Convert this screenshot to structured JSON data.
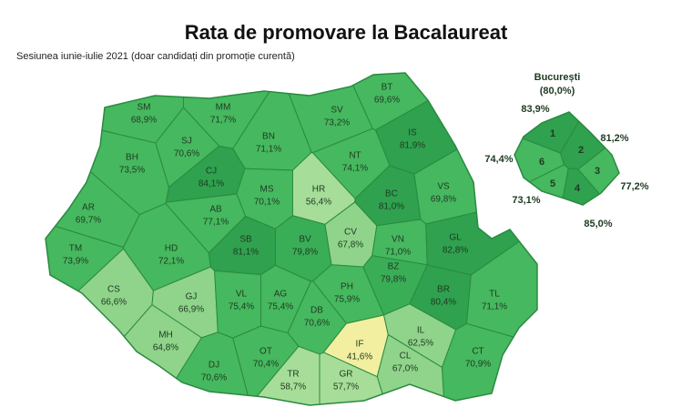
{
  "title": "Rata de promovare la Bacalaureat",
  "subtitle": "Sesiunea iunie-iulie 2021 (doar candidați din promoție curentă)",
  "counties": [
    {
      "code": "SM",
      "value": 68.9,
      "label": "68,9%",
      "color": "#46b85f"
    },
    {
      "code": "MM",
      "value": 71.7,
      "label": "71,7%",
      "color": "#46b85f"
    },
    {
      "code": "BT",
      "value": 69.6,
      "label": "69,6%",
      "color": "#46b85f"
    },
    {
      "code": "SV",
      "value": 73.2,
      "label": "73,2%",
      "color": "#46b85f"
    },
    {
      "code": "SJ",
      "value": 70.6,
      "label": "70,6%",
      "color": "#46b85f"
    },
    {
      "code": "BN",
      "value": 71.1,
      "label": "71,1%",
      "color": "#46b85f"
    },
    {
      "code": "IS",
      "value": 81.9,
      "label": "81,9%",
      "color": "#2fa14f"
    },
    {
      "code": "BH",
      "value": 73.5,
      "label": "73,5%",
      "color": "#46b85f"
    },
    {
      "code": "CJ",
      "value": 84.1,
      "label": "84,1%",
      "color": "#2fa14f"
    },
    {
      "code": "NT",
      "value": 74.1,
      "label": "74,1%",
      "color": "#46b85f"
    },
    {
      "code": "MS",
      "value": 70.1,
      "label": "70,1%",
      "color": "#46b85f"
    },
    {
      "code": "HR",
      "value": 56.4,
      "label": "56,4%",
      "color": "#a6dd98"
    },
    {
      "code": "BC",
      "value": 81.0,
      "label": "81,0%",
      "color": "#2fa14f"
    },
    {
      "code": "VS",
      "value": 69.8,
      "label": "69,8%",
      "color": "#46b85f"
    },
    {
      "code": "AR",
      "value": 69.7,
      "label": "69,7%",
      "color": "#46b85f"
    },
    {
      "code": "AB",
      "value": 77.1,
      "label": "77,1%",
      "color": "#46b85f"
    },
    {
      "code": "CV",
      "value": 67.8,
      "label": "67,8%",
      "color": "#8fd48a"
    },
    {
      "code": "SB",
      "value": 81.1,
      "label": "81,1%",
      "color": "#2fa14f"
    },
    {
      "code": "BV",
      "value": 79.8,
      "label": "79,8%",
      "color": "#3aad57"
    },
    {
      "code": "VN",
      "value": 71.0,
      "label": "71,0%",
      "color": "#46b85f"
    },
    {
      "code": "GL",
      "value": 82.8,
      "label": "82,8%",
      "color": "#2fa14f"
    },
    {
      "code": "TM",
      "value": 73.9,
      "label": "73,9%",
      "color": "#46b85f"
    },
    {
      "code": "HD",
      "value": 72.1,
      "label": "72,1%",
      "color": "#46b85f"
    },
    {
      "code": "CS",
      "value": 66.6,
      "label": "66,6%",
      "color": "#8fd48a"
    },
    {
      "code": "GJ",
      "value": 66.9,
      "label": "66,9%",
      "color": "#8fd48a"
    },
    {
      "code": "VL",
      "value": 75.4,
      "label": "75,4%",
      "color": "#46b85f"
    },
    {
      "code": "AG",
      "value": 75.4,
      "label": "75,4%",
      "color": "#46b85f"
    },
    {
      "code": "PH",
      "value": 75.9,
      "label": "75,9%",
      "color": "#46b85f"
    },
    {
      "code": "BZ",
      "value": 79.8,
      "label": "79,8%",
      "color": "#3aad57"
    },
    {
      "code": "BR",
      "value": 80.4,
      "label": "80,4%",
      "color": "#2fa14f"
    },
    {
      "code": "TL",
      "value": 71.1,
      "label": "71,1%",
      "color": "#46b85f"
    },
    {
      "code": "DB",
      "value": 70.6,
      "label": "70,6%",
      "color": "#46b85f"
    },
    {
      "code": "MH",
      "value": 64.8,
      "label": "64,8%",
      "color": "#8fd48a"
    },
    {
      "code": "IL",
      "value": 62.5,
      "label": "62,5%",
      "color": "#8fd48a"
    },
    {
      "code": "IF",
      "value": 41.6,
      "label": "41,6%",
      "color": "#f3efa0"
    },
    {
      "code": "CL",
      "value": 67.0,
      "label": "67,0%",
      "color": "#8fd48a"
    },
    {
      "code": "CT",
      "value": 70.9,
      "label": "70,9%",
      "color": "#46b85f"
    },
    {
      "code": "DJ",
      "value": 70.6,
      "label": "70,6%",
      "color": "#46b85f"
    },
    {
      "code": "OT",
      "value": 70.4,
      "label": "70,4%",
      "color": "#46b85f"
    },
    {
      "code": "TR",
      "value": 58.7,
      "label": "58,7%",
      "color": "#a6dd98"
    },
    {
      "code": "GR",
      "value": 57.7,
      "label": "57,7%",
      "color": "#a6dd98"
    }
  ],
  "bucharest": {
    "name": "București",
    "value": 80.0,
    "label": "(80,0%)",
    "sectors": [
      {
        "number": "1",
        "value": 83.9,
        "label": "83,9%",
        "color": "#2fa14f"
      },
      {
        "number": "2",
        "value": 81.2,
        "label": "81,2%",
        "color": "#2fa14f"
      },
      {
        "number": "3",
        "value": 77.2,
        "label": "77,2%",
        "color": "#46b85f"
      },
      {
        "number": "4",
        "value": 85.0,
        "label": "85,0%",
        "color": "#2fa14f"
      },
      {
        "number": "5",
        "value": 73.1,
        "label": "73,1%",
        "color": "#46b85f"
      },
      {
        "number": "6",
        "value": 74.4,
        "label": "74,4%",
        "color": "#46b85f"
      }
    ]
  }
}
